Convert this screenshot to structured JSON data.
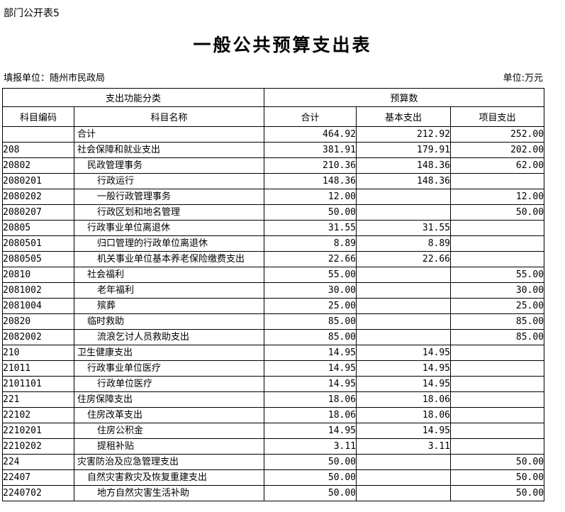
{
  "page": {
    "doc_label": "部门公开表5",
    "title": "一般公共预算支出表",
    "reporting_unit": "填报单位：随州市民政局",
    "unit_note": "单位:万元"
  },
  "table": {
    "header": {
      "group_function": "支出功能分类",
      "group_budget": "预算数",
      "col_code": "科目编码",
      "col_name": "科目名称",
      "col_total": "合计",
      "col_basic": "基本支出",
      "col_project": "项目支出"
    },
    "rows": [
      {
        "code": "",
        "name": "合计",
        "indent": 0,
        "total": "464.92",
        "basic": "212.92",
        "project": "252.00"
      },
      {
        "code": "208",
        "name": "社会保障和就业支出",
        "indent": 0,
        "total": "381.91",
        "basic": "179.91",
        "project": "202.00"
      },
      {
        "code": "20802",
        "name": "民政管理事务",
        "indent": 1,
        "total": "210.36",
        "basic": "148.36",
        "project": "62.00"
      },
      {
        "code": "2080201",
        "name": "行政运行",
        "indent": 2,
        "total": "148.36",
        "basic": "148.36",
        "project": ""
      },
      {
        "code": "2080202",
        "name": "一般行政管理事务",
        "indent": 2,
        "total": "12.00",
        "basic": "",
        "project": "12.00"
      },
      {
        "code": "2080207",
        "name": "行政区划和地名管理",
        "indent": 2,
        "total": "50.00",
        "basic": "",
        "project": "50.00"
      },
      {
        "code": "20805",
        "name": "行政事业单位离退休",
        "indent": 1,
        "total": "31.55",
        "basic": "31.55",
        "project": ""
      },
      {
        "code": "2080501",
        "name": "归口管理的行政单位离退休",
        "indent": 2,
        "total": "8.89",
        "basic": "8.89",
        "project": ""
      },
      {
        "code": "2080505",
        "name": "机关事业单位基本养老保险缴费支出",
        "indent": 2,
        "total": "22.66",
        "basic": "22.66",
        "project": ""
      },
      {
        "code": "20810",
        "name": "社会福利",
        "indent": 1,
        "total": "55.00",
        "basic": "",
        "project": "55.00"
      },
      {
        "code": "2081002",
        "name": "老年福利",
        "indent": 2,
        "total": "30.00",
        "basic": "",
        "project": "30.00"
      },
      {
        "code": "2081004",
        "name": "殡葬",
        "indent": 2,
        "total": "25.00",
        "basic": "",
        "project": "25.00"
      },
      {
        "code": "20820",
        "name": "临时救助",
        "indent": 1,
        "total": "85.00",
        "basic": "",
        "project": "85.00"
      },
      {
        "code": "2082002",
        "name": "流浪乞讨人员救助支出",
        "indent": 2,
        "total": "85.00",
        "basic": "",
        "project": "85.00"
      },
      {
        "code": "210",
        "name": "卫生健康支出",
        "indent": 0,
        "total": "14.95",
        "basic": "14.95",
        "project": ""
      },
      {
        "code": "21011",
        "name": "行政事业单位医疗",
        "indent": 1,
        "total": "14.95",
        "basic": "14.95",
        "project": ""
      },
      {
        "code": "2101101",
        "name": "行政单位医疗",
        "indent": 2,
        "total": "14.95",
        "basic": "14.95",
        "project": ""
      },
      {
        "code": "221",
        "name": "住房保障支出",
        "indent": 0,
        "total": "18.06",
        "basic": "18.06",
        "project": ""
      },
      {
        "code": "22102",
        "name": "住房改革支出",
        "indent": 1,
        "total": "18.06",
        "basic": "18.06",
        "project": ""
      },
      {
        "code": "2210201",
        "name": "住房公积金",
        "indent": 2,
        "total": "14.95",
        "basic": "14.95",
        "project": ""
      },
      {
        "code": "2210202",
        "name": "提租补贴",
        "indent": 2,
        "total": "3.11",
        "basic": "3.11",
        "project": ""
      },
      {
        "code": "224",
        "name": "灾害防治及应急管理支出",
        "indent": 0,
        "total": "50.00",
        "basic": "",
        "project": "50.00"
      },
      {
        "code": "22407",
        "name": "自然灾害救灾及恢复重建支出",
        "indent": 1,
        "total": "50.00",
        "basic": "",
        "project": "50.00"
      },
      {
        "code": "2240702",
        "name": "地方自然灾害生活补助",
        "indent": 2,
        "total": "50.00",
        "basic": "",
        "project": "50.00"
      }
    ]
  }
}
